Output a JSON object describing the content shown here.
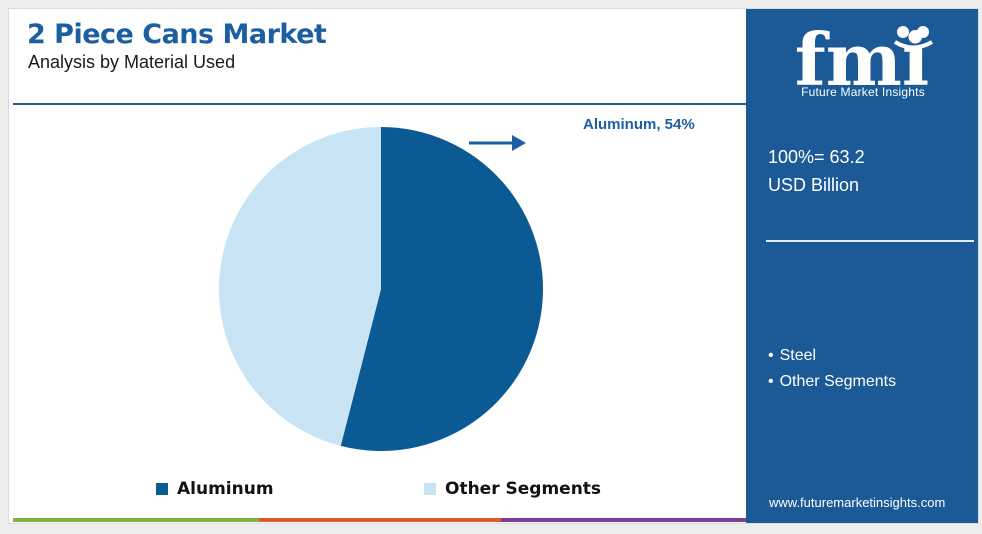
{
  "title": "2 Piece Cans Market",
  "subtitle": "Analysis by Material Used",
  "colors": {
    "title": "#1c5fa0",
    "aluminum": "#0c5a94",
    "other_segments": "#c8e4f4",
    "side_panel": "#1b5a97",
    "bottom_bar": [
      "#7cb342",
      "#e2582e",
      "#7b3f97"
    ]
  },
  "chart_data": {
    "type": "pie",
    "slices": [
      {
        "label": "Aluminum",
        "value": 54,
        "color": "#0c5a94"
      },
      {
        "label": "Other Segments",
        "value": 46,
        "color": "#c8e4f4"
      }
    ],
    "callout": "Aluminum, 54%",
    "legend_position": "bottom"
  },
  "legend": [
    {
      "label": "Aluminum",
      "color": "#0c5a94"
    },
    {
      "label": "Other Segments",
      "color": "#c8e4f4"
    }
  ],
  "side_panel": {
    "logo_text": "fmi",
    "logo_subtitle": "Future Market Insights",
    "total_line1": "100%= 63.2",
    "total_line2": "USD Billion",
    "other_segments": [
      "Steel",
      "Other Segments"
    ],
    "website": "www.futuremarketinsights.com"
  },
  "icons": {
    "callout_arrow": "arrow-right-icon"
  }
}
